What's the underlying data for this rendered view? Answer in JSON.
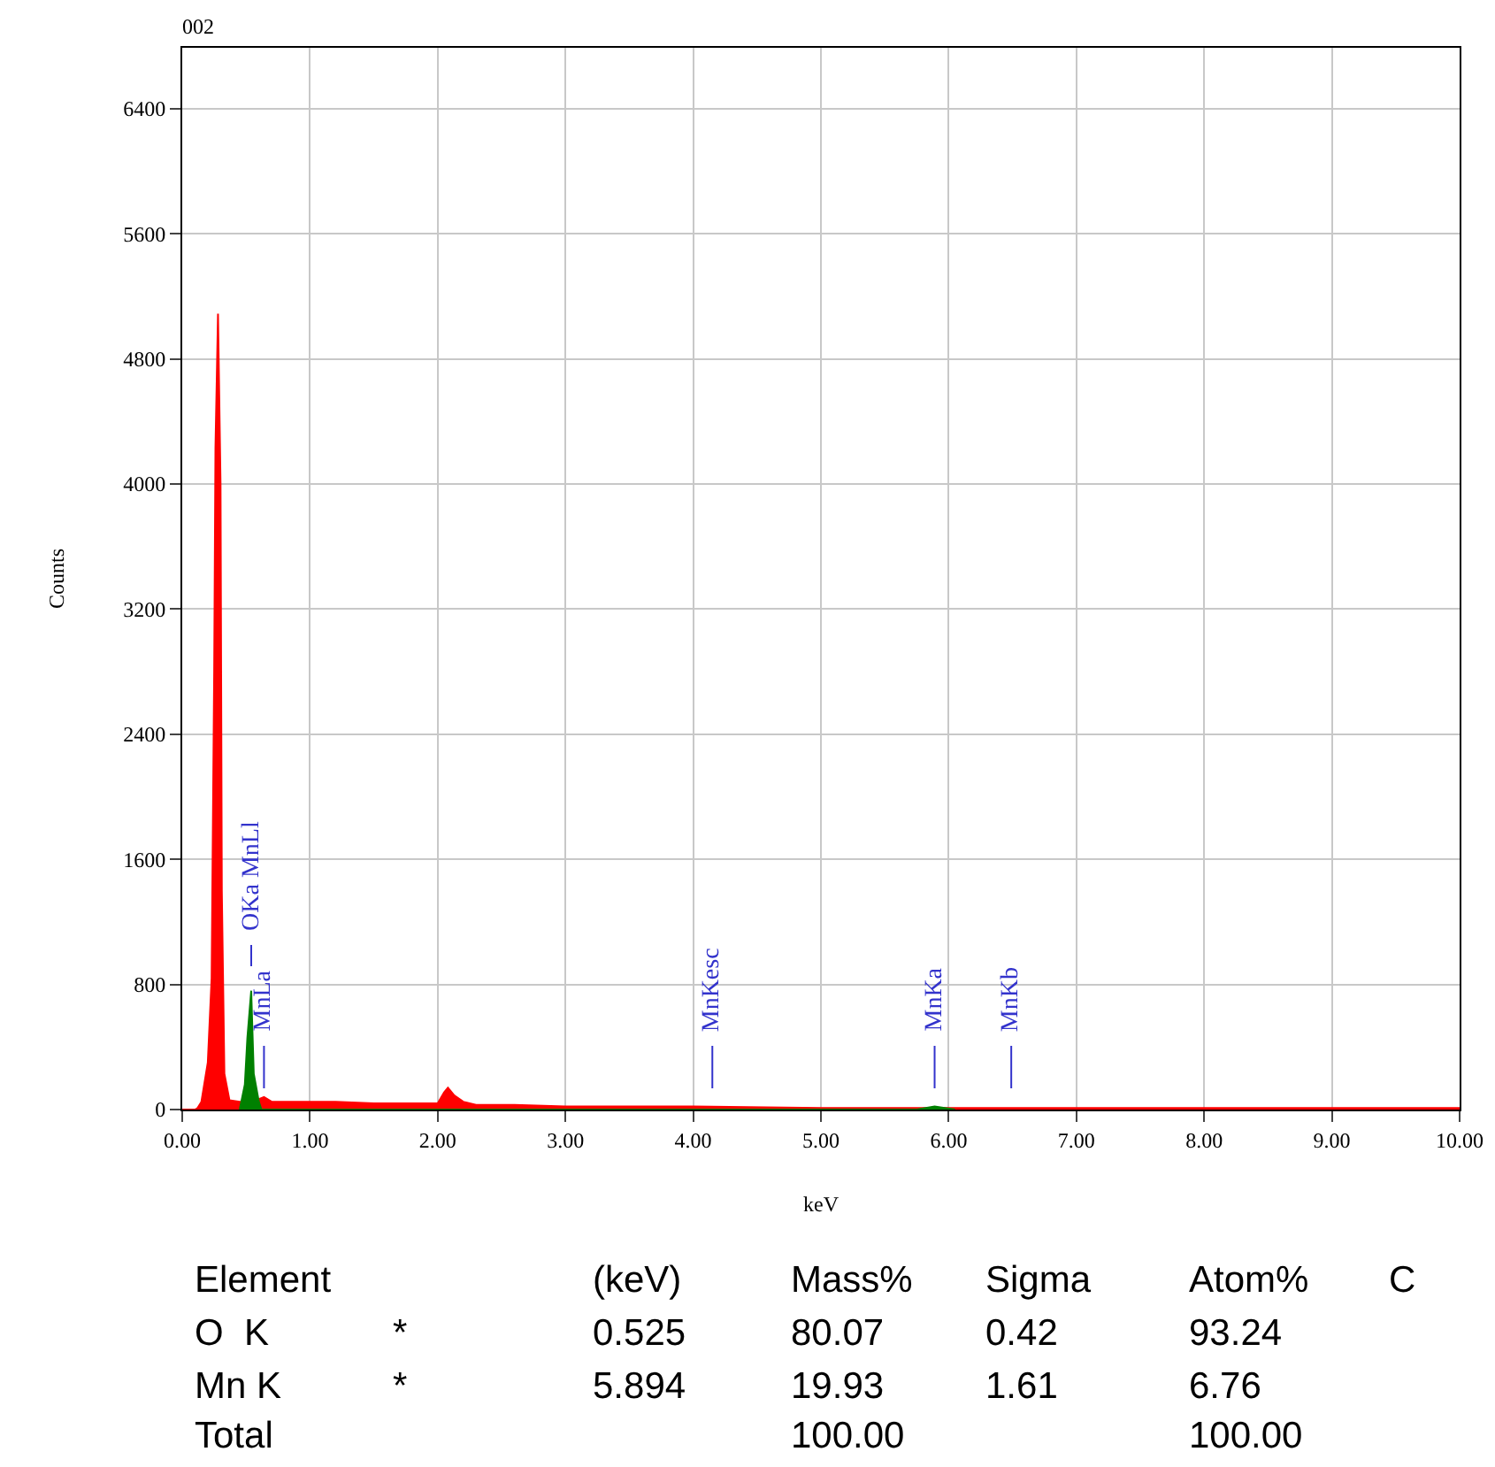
{
  "chart_data": {
    "type": "area",
    "title": "002",
    "xlabel": "keV",
    "ylabel": "Counts",
    "xlim": [
      0,
      10
    ],
    "ylim": [
      0,
      6790
    ],
    "xticks": [
      {
        "value": 0,
        "label": "0.00"
      },
      {
        "value": 1,
        "label": "1.00"
      },
      {
        "value": 2,
        "label": "2.00"
      },
      {
        "value": 3,
        "label": "3.00"
      },
      {
        "value": 4,
        "label": "4.00"
      },
      {
        "value": 5,
        "label": "5.00"
      },
      {
        "value": 6,
        "label": "6.00"
      },
      {
        "value": 7,
        "label": "7.00"
      },
      {
        "value": 8,
        "label": "8.00"
      },
      {
        "value": 9,
        "label": "9.00"
      },
      {
        "value": 10,
        "label": "10.00"
      }
    ],
    "yticks": [
      0,
      800,
      1600,
      2400,
      3200,
      4000,
      4800,
      5600,
      6400
    ],
    "grid": true,
    "legend": false,
    "series": [
      {
        "color": "#ff0000",
        "x": [
          0,
          0.1,
          0.12,
          0.15,
          0.2,
          0.23,
          0.25,
          0.26,
          0.28,
          0.3,
          0.31,
          0.33,
          0.37,
          0.45,
          0.55,
          0.64,
          0.7,
          0.9,
          1.2,
          1.5,
          1.8,
          1.95,
          2.0,
          2.05,
          2.08,
          2.13,
          2.2,
          2.3,
          2.6,
          3.0,
          4.0,
          5.0,
          6.0,
          7.0,
          8.0,
          9.0,
          10.0
        ],
        "values": [
          0,
          0,
          10,
          50,
          300,
          840,
          2800,
          4230,
          5090,
          4000,
          1400,
          230,
          60,
          50,
          50,
          80,
          50,
          50,
          50,
          40,
          40,
          40,
          40,
          110,
          140,
          90,
          50,
          30,
          30,
          20,
          20,
          10,
          10,
          10,
          10,
          10,
          10
        ]
      },
      {
        "color": "#008000",
        "x": [
          0.45,
          0.49,
          0.51,
          0.54,
          0.56,
          0.6,
          0.62,
          5.75,
          5.89,
          6.05
        ],
        "values": [
          0,
          160,
          460,
          760,
          230,
          50,
          0,
          0,
          20,
          0
        ]
      }
    ],
    "ref_lines": [
      {
        "axis": "x",
        "value": 0.54,
        "label": "OKa MnLl"
      },
      {
        "axis": "x",
        "value": 0.64,
        "label": "MnLa"
      },
      {
        "axis": "x",
        "value": 4.15,
        "label": "MnKesc"
      },
      {
        "axis": "x",
        "value": 5.89,
        "label": "MnKa"
      },
      {
        "axis": "x",
        "value": 6.49,
        "label": "MnKb"
      }
    ],
    "annotations": [
      "Element",
      "(keV)",
      "Mass%",
      "Sigma",
      "Atom%",
      "C",
      "O  K",
      "*",
      "0.525",
      "80.07",
      "0.42",
      "93.24",
      "Mn K",
      "*",
      "5.894",
      "19.93",
      "1.61",
      "6.76",
      "Total",
      "100.00",
      "100.00"
    ]
  }
}
